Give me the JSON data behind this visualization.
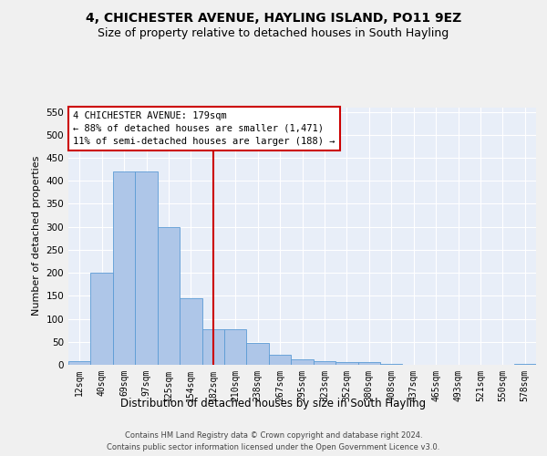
{
  "title1": "4, CHICHESTER AVENUE, HAYLING ISLAND, PO11 9EZ",
  "title2": "Size of property relative to detached houses in South Hayling",
  "xlabel": "Distribution of detached houses by size in South Hayling",
  "ylabel": "Number of detached properties",
  "footnote1": "Contains HM Land Registry data © Crown copyright and database right 2024.",
  "footnote2": "Contains public sector information licensed under the Open Government Licence v3.0.",
  "categories": [
    "12sqm",
    "40sqm",
    "69sqm",
    "97sqm",
    "125sqm",
    "154sqm",
    "182sqm",
    "210sqm",
    "238sqm",
    "267sqm",
    "295sqm",
    "323sqm",
    "352sqm",
    "380sqm",
    "408sqm",
    "437sqm",
    "465sqm",
    "493sqm",
    "521sqm",
    "550sqm",
    "578sqm"
  ],
  "values": [
    8,
    200,
    420,
    420,
    300,
    145,
    78,
    78,
    48,
    22,
    12,
    8,
    5,
    5,
    2,
    0,
    0,
    0,
    0,
    0,
    2
  ],
  "bar_color": "#aec6e8",
  "bar_edge_color": "#5b9bd5",
  "vline_index": 6.0,
  "property_label": "4 CHICHESTER AVENUE: 179sqm",
  "annotation_line1": "← 88% of detached houses are smaller (1,471)",
  "annotation_line2": "11% of semi-detached houses are larger (188) →",
  "annotation_box_facecolor": "#ffffff",
  "annotation_box_edgecolor": "#cc0000",
  "vline_color": "#cc0000",
  "ylim": [
    0,
    560
  ],
  "yticks": [
    0,
    50,
    100,
    150,
    200,
    250,
    300,
    350,
    400,
    450,
    500,
    550
  ],
  "bg_color": "#e8eef8",
  "fig_bg_color": "#f0f0f0",
  "grid_color": "#ffffff",
  "title1_fontsize": 10,
  "title2_fontsize": 9,
  "xlabel_fontsize": 8.5,
  "ylabel_fontsize": 8,
  "tick_fontsize": 7,
  "footnote_fontsize": 6,
  "annot_fontsize": 7.5
}
